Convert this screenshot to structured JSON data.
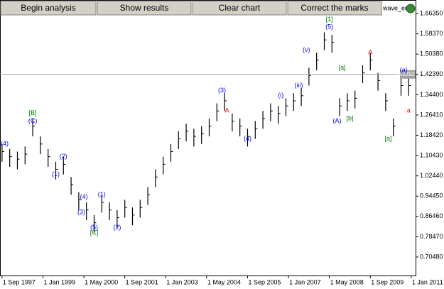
{
  "buttons": [
    "Begin analysis",
    "Show results",
    "Clear chart",
    "Correct the marks"
  ],
  "indicator": "wave_en",
  "chart_data": {
    "type": "ohlc",
    "x": [
      0,
      3,
      6,
      9,
      12,
      15,
      18,
      21,
      24,
      27,
      30,
      33,
      36,
      39,
      42,
      45,
      48,
      51,
      54,
      57,
      60,
      63,
      66,
      69,
      72,
      75,
      78,
      81,
      84,
      87,
      90,
      93,
      96,
      99,
      102,
      105,
      108,
      111,
      114,
      117,
      120,
      123,
      126,
      129,
      132,
      135,
      138,
      141,
      144,
      147,
      150,
      153,
      156,
      159
    ],
    "high": [
      1.15,
      1.13,
      1.12,
      1.14,
      1.25,
      1.18,
      1.13,
      1.08,
      1.1,
      1.02,
      0.96,
      0.92,
      0.87,
      0.95,
      0.92,
      0.89,
      0.93,
      0.9,
      0.93,
      0.98,
      1.05,
      1.1,
      1.15,
      1.2,
      1.23,
      1.21,
      1.22,
      1.25,
      1.31,
      1.35,
      1.27,
      1.25,
      1.21,
      1.24,
      1.28,
      1.31,
      1.3,
      1.33,
      1.35,
      1.37,
      1.45,
      1.51,
      1.59,
      1.58,
      1.33,
      1.35,
      1.36,
      1.46,
      1.51,
      1.43,
      1.35,
      1.25,
      1.41,
      1.41
    ],
    "low": [
      1.08,
      1.06,
      1.05,
      1.07,
      1.18,
      1.11,
      1.06,
      1.01,
      1.03,
      0.95,
      0.89,
      0.85,
      0.8,
      0.88,
      0.85,
      0.82,
      0.86,
      0.83,
      0.86,
      0.91,
      0.98,
      1.03,
      1.08,
      1.13,
      1.16,
      1.14,
      1.15,
      1.18,
      1.24,
      1.28,
      1.2,
      1.18,
      1.14,
      1.17,
      1.21,
      1.24,
      1.23,
      1.26,
      1.28,
      1.3,
      1.38,
      1.44,
      1.52,
      1.51,
      1.26,
      1.28,
      1.29,
      1.39,
      1.44,
      1.36,
      1.28,
      1.18,
      1.34,
      1.34
    ],
    "close": [
      1.12,
      1.1,
      1.09,
      1.11,
      1.22,
      1.15,
      1.1,
      1.05,
      1.07,
      0.99,
      0.93,
      0.89,
      0.84,
      0.92,
      0.89,
      0.86,
      0.9,
      0.87,
      0.9,
      0.95,
      1.02,
      1.07,
      1.12,
      1.17,
      1.2,
      1.18,
      1.19,
      1.22,
      1.28,
      1.32,
      1.24,
      1.22,
      1.18,
      1.21,
      1.25,
      1.28,
      1.27,
      1.3,
      1.32,
      1.34,
      1.42,
      1.48,
      1.56,
      1.55,
      1.3,
      1.32,
      1.33,
      1.43,
      1.48,
      1.4,
      1.32,
      1.22,
      1.38,
      1.38
    ],
    "color": "#000000",
    "xlim": [
      -0.8,
      161.7
    ],
    "xticks": [
      {
        "value": 0,
        "label": "1 Sep 1997"
      },
      {
        "value": 16,
        "label": "1 Jan 1999"
      },
      {
        "value": 32,
        "label": "1 May 2000"
      },
      {
        "value": 48,
        "label": "1 Sep 2001"
      },
      {
        "value": 64,
        "label": "1 Jan 2003"
      },
      {
        "value": 80,
        "label": "1 May 2004"
      },
      {
        "value": 96,
        "label": "1 Sep 2005"
      },
      {
        "value": 112,
        "label": "1 Jan 2007"
      },
      {
        "value": 128,
        "label": "1 May 2008"
      },
      {
        "value": 144,
        "label": "1 Sep 2009"
      },
      {
        "value": 160,
        "label": "1 Jan 2011"
      }
    ],
    "ylim": [
      0.632,
      1.717
    ],
    "yticks": [
      {
        "value": 0.7048,
        "label": "0.70480"
      },
      {
        "value": 0.7847,
        "label": "0.78470"
      },
      {
        "value": 0.8646,
        "label": "0.86460"
      },
      {
        "value": 0.9445,
        "label": "0.94450"
      },
      {
        "value": 1.0244,
        "label": "1.02440"
      },
      {
        "value": 1.1043,
        "label": "1.10430"
      },
      {
        "value": 1.1842,
        "label": "1.18420"
      },
      {
        "value": 1.2641,
        "label": "1.26410"
      },
      {
        "value": 1.344,
        "label": "1.34400"
      },
      {
        "value": 1.4239,
        "label": "1.42390"
      },
      {
        "value": 1.5038,
        "label": "1.50380"
      },
      {
        "value": 1.5837,
        "label": "1.58370"
      },
      {
        "value": 1.6635,
        "label": "1.66350"
      }
    ],
    "current_price": {
      "value": 1.42392,
      "label": "1.42392"
    },
    "annotations": [
      {
        "text": "[B]",
        "x": 12,
        "y": 1.27,
        "color": "#008000"
      },
      {
        "text": "(C)",
        "x": 12,
        "y": 1.24,
        "color": "#0000ff"
      },
      {
        "text": "(4)",
        "x": 1,
        "y": 1.15,
        "color": "#0000ff"
      },
      {
        "text": "(2)",
        "x": 24,
        "y": 1.1,
        "color": "#0000ff"
      },
      {
        "text": "(1)",
        "x": 21,
        "y": 1.03,
        "color": "#0000ff"
      },
      {
        "text": "(4)",
        "x": 32,
        "y": 0.94,
        "color": "#0000ff"
      },
      {
        "text": "(3)",
        "x": 31,
        "y": 0.88,
        "color": "#0000ff"
      },
      {
        "text": "(5)",
        "x": 36,
        "y": 0.82,
        "color": "#0000ff"
      },
      {
        "text": "[C]",
        "x": 36,
        "y": 0.8,
        "color": "#008000"
      },
      {
        "text": "(1)",
        "x": 39,
        "y": 0.95,
        "color": "#0000ff"
      },
      {
        "text": "(2)",
        "x": 45,
        "y": 0.82,
        "color": "#0000ff"
      },
      {
        "text": "(3)",
        "x": 86,
        "y": 1.36,
        "color": "#0000ff"
      },
      {
        "text": "A",
        "x": 88,
        "y": 1.28,
        "color": "#ff0000"
      },
      {
        "text": "(4)",
        "x": 96,
        "y": 1.17,
        "color": "#0000ff"
      },
      {
        "text": "(i)",
        "x": 109,
        "y": 1.34,
        "color": "#0000ff"
      },
      {
        "text": "(iii)",
        "x": 116,
        "y": 1.38,
        "color": "#0000ff"
      },
      {
        "text": "(v)",
        "x": 119,
        "y": 1.52,
        "color": "#0000ff"
      },
      {
        "text": "(5)",
        "x": 128,
        "y": 1.61,
        "color": "#0000ff"
      },
      {
        "text": "[1]",
        "x": 128,
        "y": 1.64,
        "color": "#008000"
      },
      {
        "text": "[a]",
        "x": 133,
        "y": 1.45,
        "color": "#008000"
      },
      {
        "text": "(A)",
        "x": 131,
        "y": 1.24,
        "color": "#0000ff"
      },
      {
        "text": "[b]",
        "x": 136,
        "y": 1.25,
        "color": "#008000"
      },
      {
        "text": "A",
        "x": 144,
        "y": 1.51,
        "color": "#ff0000"
      },
      {
        "text": "[a]",
        "x": 151,
        "y": 1.17,
        "color": "#008000"
      },
      {
        "text": "(a)",
        "x": 157,
        "y": 1.44,
        "color": "#0000ff"
      },
      {
        "text": "a",
        "x": 159,
        "y": 1.28,
        "color": "#ff0000"
      }
    ]
  }
}
